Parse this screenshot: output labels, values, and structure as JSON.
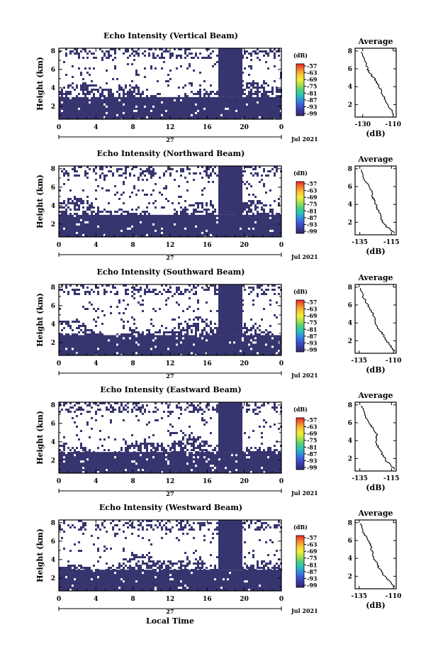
{
  "figure": {
    "date_label": "Jul 2021",
    "day_label": "27",
    "xlabel": "Local Time",
    "ylabel": "Height (km)",
    "colorbar_unit": "(dB)",
    "colorbar_ticks": [
      "-57",
      "-63",
      "-69",
      "-75",
      "-81",
      "-87",
      "-93",
      "-99"
    ],
    "colorbar_colors": [
      "#e8262b",
      "#f47b2a",
      "#f7c335",
      "#f5ee3a",
      "#aee24b",
      "#52d07a",
      "#2cc4b8",
      "#2f8fe0",
      "#3f56d8",
      "#3a3a9e",
      "#2d2b6b"
    ],
    "avg_title": "Average",
    "avg_xlabel": "(dB)",
    "fill_color": "#37356f"
  },
  "chart_data": [
    {
      "type": "heatmap",
      "title": "Echo Intensity (Vertical Beam)",
      "ylabel": "Height (km)",
      "x_ticks": [
        "0",
        "4",
        "8",
        "12",
        "16",
        "20",
        "0"
      ],
      "y_ticks": [
        "2",
        "4",
        "6",
        "8"
      ],
      "xlim": [
        0,
        24
      ],
      "ylim": [
        0.6,
        8.3
      ],
      "strong_echo_top_km": 3.0,
      "gap_hours": [
        17.2,
        19.8
      ],
      "profile": {
        "title": "Average",
        "xlabel": "(dB)",
        "x_ticks": [
          "-130",
          "-110"
        ],
        "y_ticks": [
          "2",
          "4",
          "6",
          "8"
        ],
        "xlim": [
          -135,
          -108
        ],
        "x": [
          -131,
          -128,
          -127,
          -125,
          -123,
          -121,
          -120,
          -118,
          -116,
          -114,
          -111,
          -110
        ],
        "y": [
          7.9,
          6.8,
          6.0,
          5.5,
          5.0,
          4.6,
          4.2,
          3.6,
          2.8,
          2.0,
          1.3,
          0.8
        ]
      }
    },
    {
      "type": "heatmap",
      "title": "Echo Intensity (Northward Beam)",
      "ylabel": "Height (km)",
      "x_ticks": [
        "0",
        "4",
        "8",
        "12",
        "16",
        "20",
        "0"
      ],
      "y_ticks": [
        "2",
        "4",
        "6",
        "8"
      ],
      "xlim": [
        0,
        24
      ],
      "ylim": [
        0.6,
        8.3
      ],
      "strong_echo_top_km": 3.0,
      "gap_hours": [
        17.2,
        19.8
      ],
      "profile": {
        "title": "Average",
        "xlabel": "(dB)",
        "x_ticks": [
          "-135",
          "-115"
        ],
        "y_ticks": [
          "2",
          "4",
          "6",
          "8"
        ],
        "xlim": [
          -138,
          -112
        ],
        "x": [
          -134,
          -132,
          -130,
          -128,
          -127,
          -126,
          -125,
          -124,
          -122,
          -121,
          -118,
          -113
        ],
        "y": [
          7.9,
          6.9,
          6.2,
          5.6,
          5.0,
          4.5,
          4.0,
          3.5,
          3.0,
          2.2,
          1.5,
          0.8
        ]
      }
    },
    {
      "type": "heatmap",
      "title": "Echo Intensity (Southward Beam)",
      "ylabel": "Height (km)",
      "x_ticks": [
        "0",
        "4",
        "8",
        "12",
        "16",
        "20",
        "0"
      ],
      "y_ticks": [
        "2",
        "4",
        "6",
        "8"
      ],
      "xlim": [
        0,
        24
      ],
      "ylim": [
        0.6,
        8.3
      ],
      "strong_echo_top_km": 2.8,
      "gap_hours": [
        17.2,
        19.8
      ],
      "profile": {
        "title": "Average",
        "xlabel": "(dB)",
        "x_ticks": [
          "-135",
          "-110"
        ],
        "y_ticks": [
          "2",
          "4",
          "6",
          "8"
        ],
        "xlim": [
          -138,
          -108
        ],
        "x": [
          -134,
          -132,
          -129,
          -127,
          -125,
          -124,
          -123,
          -121,
          -118,
          -115,
          -112,
          -109
        ],
        "y": [
          7.9,
          6.9,
          6.1,
          5.5,
          5.0,
          4.5,
          4.0,
          3.4,
          2.8,
          2.0,
          1.4,
          0.8
        ]
      }
    },
    {
      "type": "heatmap",
      "title": "Echo Intensity (Eastward Beam)",
      "ylabel": "Height (km)",
      "x_ticks": [
        "0",
        "4",
        "8",
        "12",
        "16",
        "20",
        "0"
      ],
      "y_ticks": [
        "2",
        "4",
        "6",
        "8"
      ],
      "xlim": [
        0,
        24
      ],
      "ylim": [
        0.6,
        8.3
      ],
      "strong_echo_top_km": 2.9,
      "gap_hours": [
        17.2,
        19.8
      ],
      "profile": {
        "title": "Average",
        "xlabel": "(dB)",
        "x_ticks": [
          "-135",
          "-115"
        ],
        "y_ticks": [
          "2",
          "4",
          "6",
          "8"
        ],
        "xlim": [
          -138,
          -112
        ],
        "x": [
          -134,
          -132,
          -130,
          -128,
          -126,
          -124,
          -125,
          -124,
          -122,
          -120,
          -117,
          -113
        ],
        "y": [
          7.9,
          7.0,
          6.3,
          5.7,
          5.1,
          4.6,
          4.1,
          3.5,
          2.9,
          2.2,
          1.5,
          0.8
        ]
      }
    },
    {
      "type": "heatmap",
      "title": "Echo Intensity (Westward Beam)",
      "ylabel": "Height (km)",
      "x_ticks": [
        "0",
        "4",
        "8",
        "12",
        "16",
        "20",
        "0"
      ],
      "y_ticks": [
        "2",
        "4",
        "6",
        "8"
      ],
      "xlim": [
        0,
        24
      ],
      "ylim": [
        0.6,
        8.3
      ],
      "strong_echo_top_km": 2.9,
      "gap_hours": [
        17.2,
        19.8
      ],
      "profile": {
        "title": "Average",
        "xlabel": "(dB)",
        "x_ticks": [
          "-135",
          "-110"
        ],
        "y_ticks": [
          "2",
          "4",
          "6",
          "8"
        ],
        "xlim": [
          -138,
          -108
        ],
        "x": [
          -134,
          -132,
          -129,
          -127,
          -126,
          -125,
          -124,
          -122,
          -120,
          -117,
          -113,
          -109
        ],
        "y": [
          7.9,
          6.9,
          6.2,
          5.6,
          5.0,
          4.5,
          4.0,
          3.4,
          2.8,
          2.1,
          1.4,
          0.8
        ]
      }
    }
  ]
}
